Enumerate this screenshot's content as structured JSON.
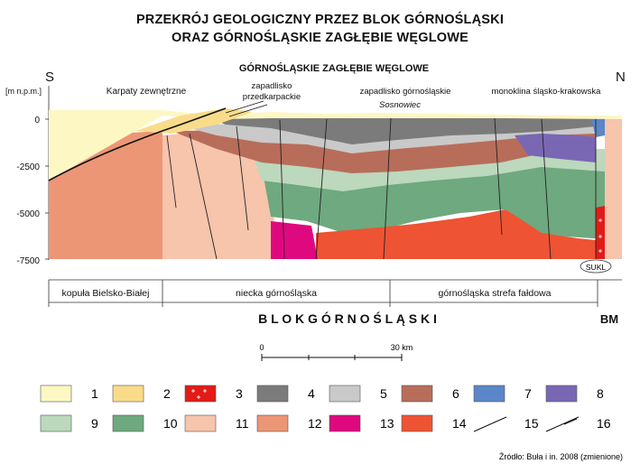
{
  "title": {
    "line1": "PRZEKRÓJ GEOLOGICZNY PRZEZ BLOK GÓRNOŚLĄSKI",
    "line2": "ORAZ GÓRNOŚLĄSKIE ZAGŁĘBIE WĘGLOWE"
  },
  "section": {
    "south": "S",
    "north": "N",
    "unit": "[m n.p.m.]",
    "depth_ticks": [
      "0",
      "-2500",
      "-5000",
      "-7500"
    ],
    "heading": "GÓRNOŚLĄSKIE  ZAGŁĘBIE  WĘGLOWE",
    "labels": {
      "karpaty": "Karpaty zewnętrzne",
      "przedkarpackie_1": "zapadlisko",
      "przedkarpackie_2": "przedkarpackie",
      "zapadlisko_gs": "zapadlisko górnośląskie",
      "sosnowiec": "Sosnowiec",
      "monoklina": "monoklina śląsko-krakowska",
      "sukl": "SUKL"
    }
  },
  "zones": {
    "kopula": "kopuła Bielsko-Białej",
    "niecka": "niecka  górnośląska",
    "strefa": "górnośląska strefa fałdowa",
    "blok": "B L O K     G Ó R N O Ś L Ą S K I",
    "bm": "BM"
  },
  "scale": {
    "start": "0",
    "end": "30 km"
  },
  "legend": [
    {
      "num": "1",
      "color": "#fdf7c4"
    },
    {
      "num": "2",
      "color": "#f9dc8a"
    },
    {
      "num": "3",
      "color": "#e31b17"
    },
    {
      "num": "4",
      "color": "#7b7b7b"
    },
    {
      "num": "5",
      "color": "#c9c9c9"
    },
    {
      "num": "6",
      "color": "#b86d5a"
    },
    {
      "num": "7",
      "color": "#5b86c9"
    },
    {
      "num": "8",
      "color": "#7a67b4"
    },
    {
      "num": "9",
      "color": "#bcd8bd"
    },
    {
      "num": "10",
      "color": "#6fa97f"
    },
    {
      "num": "11",
      "color": "#f7c4ac"
    },
    {
      "num": "12",
      "color": "#ec9676"
    },
    {
      "num": "13",
      "color": "#e0087e"
    },
    {
      "num": "14",
      "color": "#ee5333"
    },
    {
      "num": "15",
      "color": "line"
    },
    {
      "num": "16",
      "color": "thrust"
    }
  ],
  "source": "Źródło: Buła i in. 2008 (zmienione)"
}
